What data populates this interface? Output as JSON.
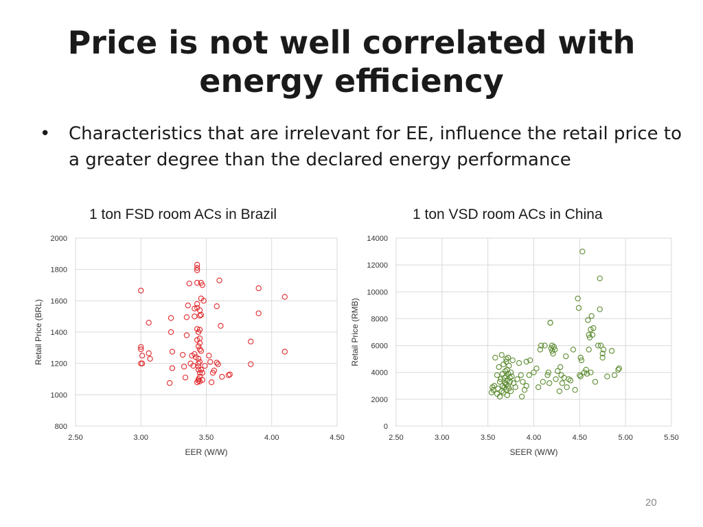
{
  "slide": {
    "title_line1": "Price is not well correlated with",
    "title_line2": "energy efficiency",
    "bullet": "Characteristics that are irrelevant for EE, influence the retail price to a greater degree than the declared energy performance",
    "page_number": "20"
  },
  "colors": {
    "brazil": "#e0262a",
    "china": "#5a8a2e",
    "grid": "#d9d9d9"
  },
  "chart_data": [
    {
      "type": "scatter",
      "title": "1 ton FSD room ACs in Brazil",
      "xlabel": "EER (W/W)",
      "ylabel": "Retail Price (BRL)",
      "xlim": [
        2.5,
        4.5
      ],
      "ylim": [
        800,
        2000
      ],
      "xticks": [
        2.5,
        3.0,
        3.5,
        4.0,
        4.5
      ],
      "yticks": [
        800,
        1000,
        1200,
        1400,
        1600,
        1800,
        2000
      ],
      "xtick_labels": [
        "2.50",
        "3.00",
        "3.50",
        "4.00",
        "4.50"
      ],
      "ytick_labels": [
        "800",
        "1000",
        "1200",
        "1400",
        "1600",
        "1800",
        "2000"
      ],
      "points": [
        [
          3.0,
          1665
        ],
        [
          3.0,
          1305
        ],
        [
          3.0,
          1290
        ],
        [
          3.01,
          1250
        ],
        [
          3.0,
          1200
        ],
        [
          3.01,
          1200
        ],
        [
          3.06,
          1460
        ],
        [
          3.06,
          1265
        ],
        [
          3.07,
          1230
        ],
        [
          3.22,
          1075
        ],
        [
          3.23,
          1490
        ],
        [
          3.23,
          1400
        ],
        [
          3.24,
          1275
        ],
        [
          3.24,
          1170
        ],
        [
          3.32,
          1255
        ],
        [
          3.33,
          1180
        ],
        [
          3.34,
          1110
        ],
        [
          3.35,
          1495
        ],
        [
          3.35,
          1380
        ],
        [
          3.36,
          1570
        ],
        [
          3.37,
          1710
        ],
        [
          3.38,
          1200
        ],
        [
          3.39,
          1250
        ],
        [
          3.4,
          1185
        ],
        [
          3.41,
          1550
        ],
        [
          3.41,
          1500
        ],
        [
          3.41,
          1260
        ],
        [
          3.42,
          1240
        ],
        [
          3.43,
          1830
        ],
        [
          3.43,
          1810
        ],
        [
          3.43,
          1795
        ],
        [
          3.43,
          1715
        ],
        [
          3.43,
          1580
        ],
        [
          3.43,
          1555
        ],
        [
          3.43,
          1420
        ],
        [
          3.43,
          1350
        ],
        [
          3.44,
          1400
        ],
        [
          3.44,
          1310
        ],
        [
          3.44,
          1230
        ],
        [
          3.44,
          1200
        ],
        [
          3.44,
          1180
        ],
        [
          3.44,
          1160
        ],
        [
          3.44,
          1100
        ],
        [
          3.44,
          1090
        ],
        [
          3.43,
          1080
        ],
        [
          3.45,
          1540
        ],
        [
          3.45,
          1505
        ],
        [
          3.45,
          1415
        ],
        [
          3.45,
          1360
        ],
        [
          3.45,
          1330
        ],
        [
          3.45,
          1290
        ],
        [
          3.45,
          1210
        ],
        [
          3.45,
          1140
        ],
        [
          3.45,
          1115
        ],
        [
          3.45,
          1085
        ],
        [
          3.46,
          1715
        ],
        [
          3.46,
          1615
        ],
        [
          3.46,
          1510
        ],
        [
          3.46,
          1280
        ],
        [
          3.46,
          1160
        ],
        [
          3.47,
          1700
        ],
        [
          3.47,
          1140
        ],
        [
          3.47,
          1095
        ],
        [
          3.48,
          1600
        ],
        [
          3.49,
          1185
        ],
        [
          3.52,
          1250
        ],
        [
          3.53,
          1210
        ],
        [
          3.54,
          1080
        ],
        [
          3.55,
          1140
        ],
        [
          3.56,
          1155
        ],
        [
          3.58,
          1565
        ],
        [
          3.58,
          1205
        ],
        [
          3.59,
          1195
        ],
        [
          3.6,
          1730
        ],
        [
          3.61,
          1440
        ],
        [
          3.62,
          1115
        ],
        [
          3.67,
          1125
        ],
        [
          3.68,
          1130
        ],
        [
          3.84,
          1340
        ],
        [
          3.84,
          1195
        ],
        [
          3.9,
          1680
        ],
        [
          3.9,
          1520
        ],
        [
          4.1,
          1625
        ],
        [
          4.1,
          1275
        ]
      ]
    },
    {
      "type": "scatter",
      "title": "1 ton VSD room ACs in China",
      "xlabel": "SEER (W/W)",
      "ylabel": "Retail Price (RMB)",
      "xlim": [
        2.5,
        5.5
      ],
      "ylim": [
        0,
        14000
      ],
      "xticks": [
        2.5,
        3.0,
        3.5,
        4.0,
        4.5,
        5.0,
        5.5
      ],
      "yticks": [
        0,
        2000,
        4000,
        6000,
        8000,
        10000,
        12000,
        14000
      ],
      "xtick_labels": [
        "2.50",
        "3.00",
        "3.50",
        "4.00",
        "4.50",
        "5.00",
        "5.50"
      ],
      "ytick_labels": [
        "0",
        "2000",
        "4000",
        "6000",
        "8000",
        "10000",
        "12000",
        "14000"
      ],
      "points": [
        [
          3.54,
          2500
        ],
        [
          3.55,
          2900
        ],
        [
          3.56,
          2700
        ],
        [
          3.57,
          3000
        ],
        [
          3.58,
          5100
        ],
        [
          3.6,
          2400
        ],
        [
          3.6,
          3800
        ],
        [
          3.61,
          2800
        ],
        [
          3.62,
          4400
        ],
        [
          3.63,
          3300
        ],
        [
          3.63,
          2200
        ],
        [
          3.64,
          3500
        ],
        [
          3.65,
          5300
        ],
        [
          3.65,
          2600
        ],
        [
          3.66,
          3900
        ],
        [
          3.66,
          3000
        ],
        [
          3.67,
          4600
        ],
        [
          3.67,
          2500
        ],
        [
          3.68,
          3600
        ],
        [
          3.68,
          2900
        ],
        [
          3.69,
          4100
        ],
        [
          3.69,
          3200
        ],
        [
          3.7,
          5000
        ],
        [
          3.7,
          4800
        ],
        [
          3.7,
          3700
        ],
        [
          3.7,
          3100
        ],
        [
          3.7,
          2700
        ],
        [
          3.71,
          4200
        ],
        [
          3.71,
          3400
        ],
        [
          3.71,
          2300
        ],
        [
          3.72,
          5100
        ],
        [
          3.72,
          3900
        ],
        [
          3.72,
          3000
        ],
        [
          3.73,
          4500
        ],
        [
          3.73,
          2800
        ],
        [
          3.74,
          3600
        ],
        [
          3.74,
          3300
        ],
        [
          3.75,
          4000
        ],
        [
          3.75,
          2600
        ],
        [
          3.76,
          3700
        ],
        [
          3.77,
          4900
        ],
        [
          3.78,
          3200
        ],
        [
          3.8,
          2900
        ],
        [
          3.82,
          3500
        ],
        [
          3.84,
          4700
        ],
        [
          3.86,
          3800
        ],
        [
          3.87,
          2200
        ],
        [
          3.88,
          3300
        ],
        [
          3.9,
          2700
        ],
        [
          3.92,
          3000
        ],
        [
          3.92,
          4800
        ],
        [
          3.95,
          3800
        ],
        [
          3.96,
          4900
        ],
        [
          4.0,
          4000
        ],
        [
          4.03,
          4300
        ],
        [
          4.05,
          2900
        ],
        [
          4.07,
          5700
        ],
        [
          4.08,
          6000
        ],
        [
          4.1,
          3300
        ],
        [
          4.12,
          6000
        ],
        [
          4.15,
          3800
        ],
        [
          4.16,
          4000
        ],
        [
          4.17,
          3200
        ],
        [
          4.18,
          7700
        ],
        [
          4.18,
          7700
        ],
        [
          4.19,
          5800
        ],
        [
          4.2,
          6000
        ],
        [
          4.2,
          5600
        ],
        [
          4.21,
          5400
        ],
        [
          4.22,
          5900
        ],
        [
          4.23,
          5700
        ],
        [
          4.24,
          3500
        ],
        [
          4.26,
          4100
        ],
        [
          4.28,
          2600
        ],
        [
          4.29,
          4400
        ],
        [
          4.3,
          3800
        ],
        [
          4.31,
          3200
        ],
        [
          4.33,
          3600
        ],
        [
          4.35,
          5200
        ],
        [
          4.36,
          2900
        ],
        [
          4.38,
          3500
        ],
        [
          4.4,
          3400
        ],
        [
          4.43,
          5700
        ],
        [
          4.45,
          2700
        ],
        [
          4.48,
          9500
        ],
        [
          4.49,
          8800
        ],
        [
          4.5,
          3800
        ],
        [
          4.51,
          5100
        ],
        [
          4.51,
          3700
        ],
        [
          4.52,
          4900
        ],
        [
          4.53,
          13000
        ],
        [
          4.55,
          4000
        ],
        [
          4.57,
          4200
        ],
        [
          4.58,
          3900
        ],
        [
          4.59,
          7900
        ],
        [
          4.6,
          6800
        ],
        [
          4.6,
          5700
        ],
        [
          4.61,
          6600
        ],
        [
          4.62,
          4000
        ],
        [
          4.62,
          7200
        ],
        [
          4.63,
          8200
        ],
        [
          4.64,
          6800
        ],
        [
          4.65,
          7300
        ],
        [
          4.67,
          3300
        ],
        [
          4.7,
          6000
        ],
        [
          4.72,
          11000
        ],
        [
          4.72,
          8700
        ],
        [
          4.73,
          6000
        ],
        [
          4.75,
          5400
        ],
        [
          4.75,
          5100
        ],
        [
          4.76,
          5700
        ],
        [
          4.8,
          3700
        ],
        [
          4.85,
          5600
        ],
        [
          4.88,
          3800
        ],
        [
          4.92,
          4200
        ],
        [
          4.93,
          4300
        ]
      ]
    }
  ]
}
